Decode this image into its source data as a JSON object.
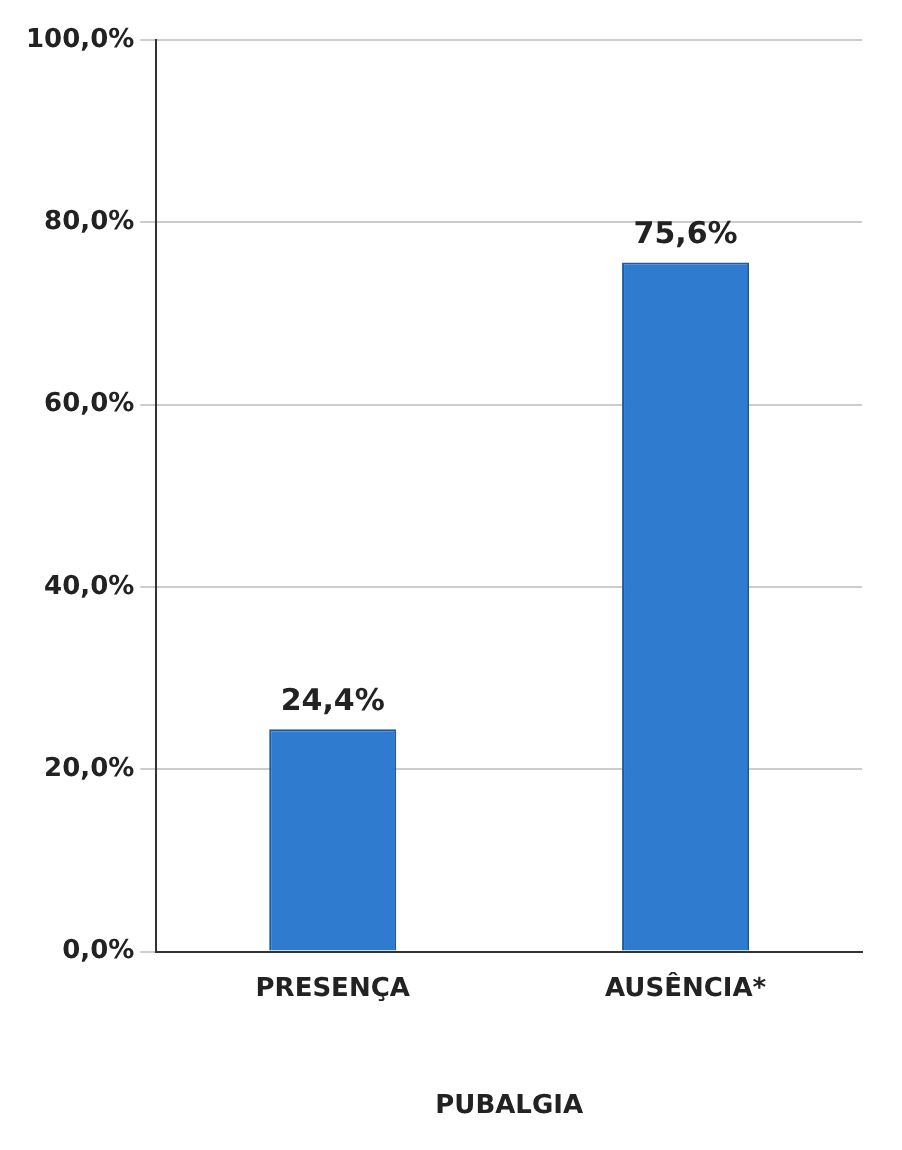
{
  "chart_data": {
    "type": "bar",
    "xlabel": "PUBALGIA",
    "categories": [
      "PRESENÇA",
      "AUSÊNCIA*"
    ],
    "values": [
      24.4,
      75.6
    ],
    "color": "#2e7bd0",
    "value_labels": [
      "24,4%",
      "75,6%"
    ],
    "ylim": [
      0,
      100
    ],
    "yticks": [
      {
        "value": 0,
        "label": "0,0%"
      },
      {
        "value": 20,
        "label": "20,0%"
      },
      {
        "value": 40,
        "label": "40,0%"
      },
      {
        "value": 60,
        "label": "60,0%"
      },
      {
        "value": 80,
        "label": "80,0%"
      },
      {
        "value": 100,
        "label": "100,0%"
      }
    ],
    "grid": "y"
  }
}
